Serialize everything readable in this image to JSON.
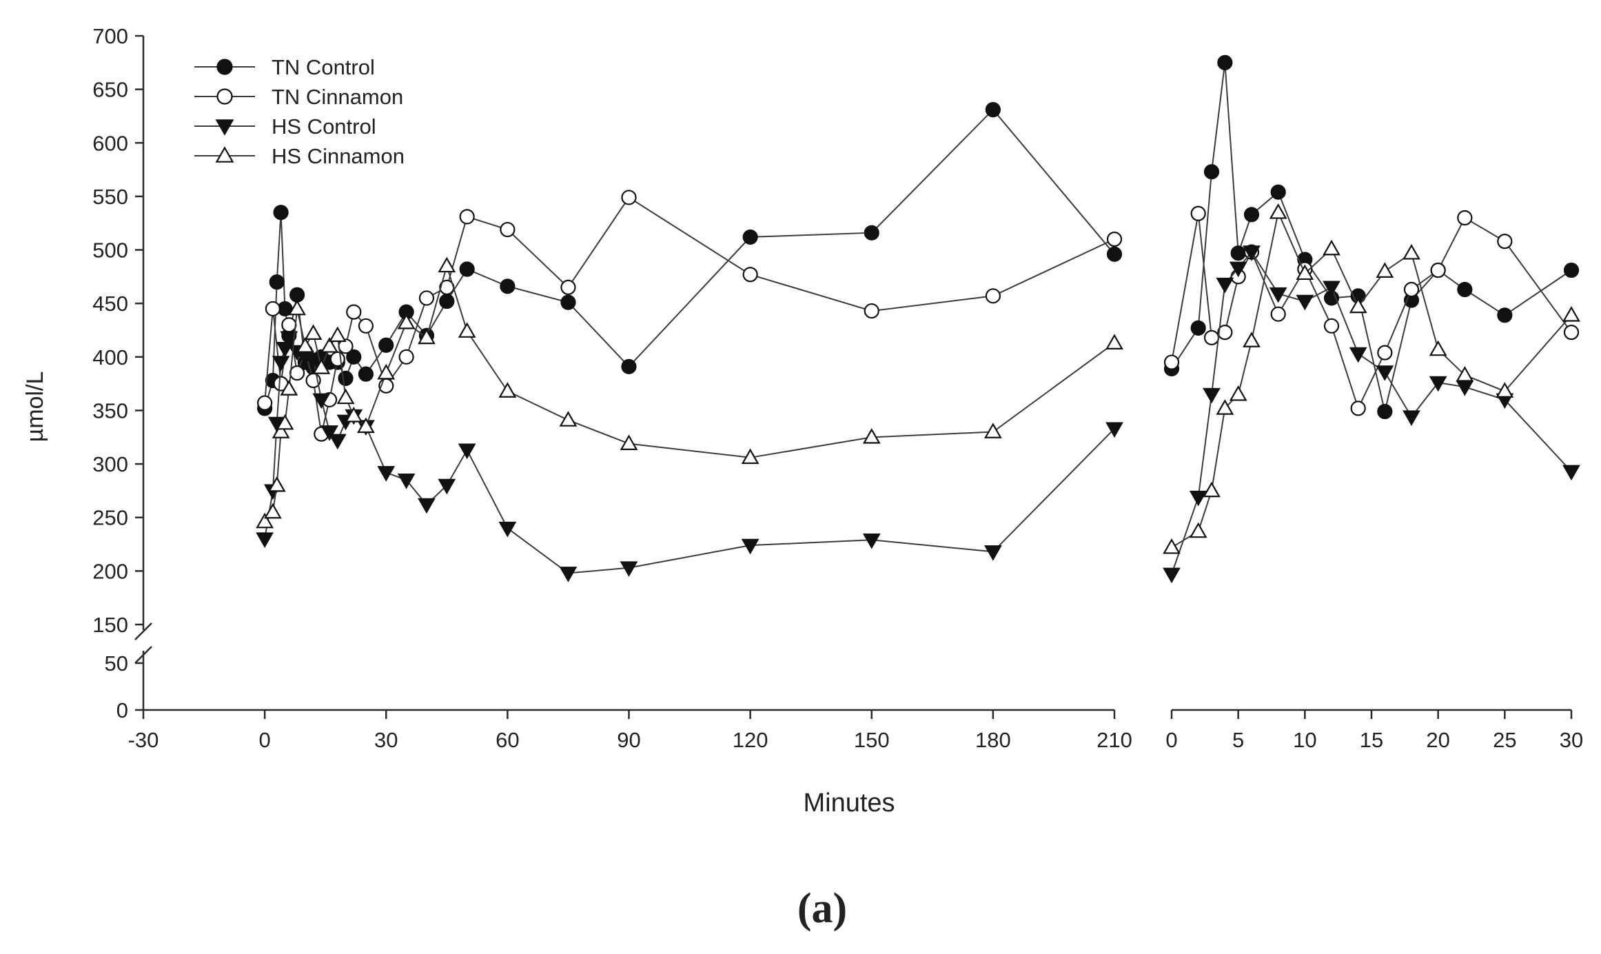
{
  "chart_data": {
    "type": "line",
    "ylabel": "µmol/L",
    "xlabel": "Minutes",
    "panel_label": "(a)",
    "legend": {
      "placement": "top-left",
      "entries": [
        "TN Control",
        "TN Cinnamon",
        "HS Control",
        "HS Cinnamon"
      ]
    },
    "y_axis": {
      "upper_ticks": [
        150,
        200,
        250,
        300,
        350,
        400,
        450,
        500,
        550,
        600,
        650,
        700
      ],
      "lower_ticks": [
        0,
        50
      ],
      "break_between": [
        50,
        150
      ]
    },
    "panels": [
      {
        "name": "main",
        "xlim": [
          -30,
          210
        ],
        "x_ticks": [
          -30,
          0,
          30,
          60,
          90,
          120,
          150,
          180,
          210
        ],
        "series": [
          {
            "name": "TN Control",
            "marker": "circle",
            "filled": true,
            "x": [
              0,
              2,
              3,
              4,
              5,
              6,
              8,
              10,
              12,
              14,
              16,
              18,
              20,
              22,
              25,
              30,
              35,
              40,
              45,
              50,
              60,
              75,
              90,
              120,
              150,
              180,
              210
            ],
            "y": [
              352,
              378,
              470,
              535,
              445,
              420,
              458,
              395,
              390,
              400,
              395,
              395,
              380,
              400,
              384,
              411,
              442,
              420,
              452,
              482,
              466,
              451,
              391,
              512,
              516,
              631,
              496
            ]
          },
          {
            "name": "TN Cinnamon",
            "marker": "circle",
            "filled": false,
            "x": [
              0,
              2,
              4,
              6,
              8,
              10,
              12,
              14,
              16,
              18,
              20,
              22,
              25,
              30,
              35,
              40,
              45,
              50,
              60,
              75,
              90,
              120,
              150,
              180,
              210
            ],
            "y": [
              357,
              445,
              375,
              430,
              385,
              405,
              378,
              328,
              360,
              398,
              410,
              442,
              429,
              373,
              400,
              455,
              465,
              531,
              519,
              465,
              549,
              477,
              443,
              457,
              510
            ]
          },
          {
            "name": "HS Control",
            "marker": "triangle-down",
            "filled": true,
            "x": [
              0,
              2,
              3,
              4,
              5,
              6,
              8,
              10,
              12,
              14,
              16,
              18,
              20,
              22,
              25,
              30,
              35,
              40,
              45,
              50,
              60,
              75,
              90,
              120,
              150,
              180,
              210
            ],
            "y": [
              230,
              275,
              338,
              395,
              408,
              418,
              405,
              400,
              398,
              360,
              330,
              322,
              340,
              345,
              335,
              292,
              285,
              262,
              280,
              313,
              240,
              198,
              203,
              224,
              229,
              218,
              333
            ]
          },
          {
            "name": "HS Cinnamon",
            "marker": "triangle-up",
            "filled": false,
            "x": [
              0,
              2,
              3,
              4,
              5,
              6,
              8,
              10,
              12,
              14,
              16,
              18,
              20,
              22,
              25,
              30,
              35,
              40,
              45,
              50,
              60,
              75,
              90,
              120,
              150,
              180,
              210
            ],
            "y": [
              246,
              255,
              280,
              330,
              338,
              370,
              445,
              410,
              422,
              390,
              410,
              420,
              362,
              345,
              335,
              385,
              432,
              418,
              485,
              424,
              368,
              341,
              319,
              306,
              325,
              330,
              413
            ]
          }
        ]
      },
      {
        "name": "recovery",
        "x_ticks": [
          0,
          5,
          10,
          15,
          20,
          25,
          30
        ],
        "x_tick_labels": [
          "0",
          "5",
          "10",
          "15",
          "20",
          "25",
          "30"
        ],
        "x_tick_positions": [
          0,
          5,
          10,
          15,
          20,
          25,
          30
        ],
        "series": [
          {
            "name": "TN Control",
            "marker": "circle",
            "filled": true,
            "x": [
              0,
              2,
              3,
              4,
              5,
              6,
              8,
              10,
              12,
              14,
              16,
              18,
              20,
              22,
              25,
              30
            ],
            "y": [
              389,
              427,
              573,
              675,
              497,
              533,
              554,
              491,
              455,
              457,
              349,
              453,
              481,
              463,
              439,
              481
            ]
          },
          {
            "name": "TN Cinnamon",
            "marker": "circle",
            "filled": false,
            "x": [
              0,
              2,
              3,
              4,
              5,
              6,
              8,
              10,
              12,
              14,
              16,
              18,
              20,
              22,
              25,
              30
            ],
            "y": [
              395,
              534,
              418,
              423,
              475,
              498,
              440,
              482,
              429,
              352,
              404,
              463,
              481,
              530,
              508,
              423
            ]
          },
          {
            "name": "HS Control",
            "marker": "triangle-down",
            "filled": true,
            "x": [
              0,
              2,
              3,
              4,
              5,
              6,
              8,
              10,
              12,
              14,
              16,
              18,
              20,
              22,
              25,
              30
            ],
            "y": [
              197,
              269,
              365,
              468,
              483,
              498,
              459,
              452,
              465,
              403,
              386,
              344,
              376,
              372,
              360,
              293
            ]
          },
          {
            "name": "HS Cinnamon",
            "marker": "triangle-up",
            "filled": false,
            "x": [
              0,
              2,
              3,
              4,
              5,
              6,
              8,
              10,
              12,
              14,
              16,
              18,
              20,
              22,
              25,
              30
            ],
            "y": [
              222,
              237,
              275,
              352,
              365,
              415,
              535,
              478,
              501,
              447,
              480,
              497,
              407,
              383,
              368,
              439
            ]
          }
        ]
      }
    ]
  }
}
